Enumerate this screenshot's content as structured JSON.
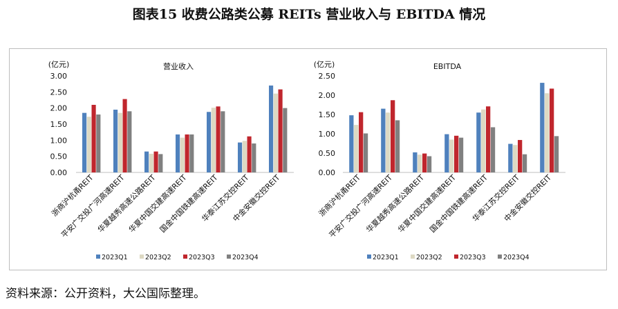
{
  "figure_title": "图表15 收费公路类公募 REITs 营业收入与 EBITDA 情况",
  "source_note": "资料来源：公开资料，大公国际整理。",
  "colors": {
    "2023Q1": "#4f81bd",
    "2023Q2": "#ddd9c3",
    "2023Q3": "#c0262d",
    "2023Q4": "#808080"
  },
  "chart_data": [
    {
      "type": "bar",
      "title": "营业收入",
      "unit": "(亿元)",
      "ylim": [
        0,
        3.0
      ],
      "yticks": [
        "0.00",
        "0.50",
        "1.00",
        "1.50",
        "2.00",
        "2.50",
        "3.00"
      ],
      "grid": false,
      "legend": "bottom",
      "categories": [
        "浙商沪杭甬REIT",
        "平安广交投广河高速REIT",
        "华夏越秀高速公路REIT",
        "华夏中国交建高速REIT",
        "国金中国铁建高速REIT",
        "华泰江苏交控REIT",
        "中金安徽交控REIT"
      ],
      "series": [
        {
          "name": "2023Q1",
          "values": [
            1.85,
            1.95,
            0.65,
            1.18,
            1.88,
            0.93,
            2.7
          ]
        },
        {
          "name": "2023Q2",
          "values": [
            1.73,
            1.85,
            0.58,
            1.08,
            2.01,
            0.98,
            2.45
          ]
        },
        {
          "name": "2023Q3",
          "values": [
            2.1,
            2.28,
            0.65,
            1.18,
            2.05,
            1.12,
            2.58
          ]
        },
        {
          "name": "2023Q4",
          "values": [
            1.8,
            1.9,
            0.57,
            1.18,
            1.9,
            0.9,
            2.0
          ]
        }
      ]
    },
    {
      "type": "bar",
      "title": "EBITDA",
      "unit": "(亿元)",
      "ylim": [
        0,
        2.5
      ],
      "yticks": [
        "0.00",
        "0.50",
        "1.00",
        "1.50",
        "2.00",
        "2.50"
      ],
      "grid": false,
      "legend": "bottom",
      "categories": [
        "浙商沪杭甬REIT",
        "平安广交投广河高速REIT",
        "华夏越秀高速公路REIT",
        "华夏中国交建高速REIT",
        "国金中国铁建高速REIT",
        "华泰江苏交控REIT",
        "中金安徽交控REIT"
      ],
      "series": [
        {
          "name": "2023Q1",
          "values": [
            1.48,
            1.65,
            0.52,
            0.99,
            1.55,
            0.74,
            2.32
          ]
        },
        {
          "name": "2023Q2",
          "values": [
            1.23,
            1.55,
            0.46,
            0.85,
            1.63,
            0.71,
            2.05
          ]
        },
        {
          "name": "2023Q3",
          "values": [
            1.56,
            1.87,
            0.49,
            0.95,
            1.71,
            0.84,
            2.17
          ]
        },
        {
          "name": "2023Q4",
          "values": [
            1.01,
            1.35,
            0.42,
            0.9,
            1.17,
            0.47,
            0.94
          ]
        }
      ]
    }
  ]
}
